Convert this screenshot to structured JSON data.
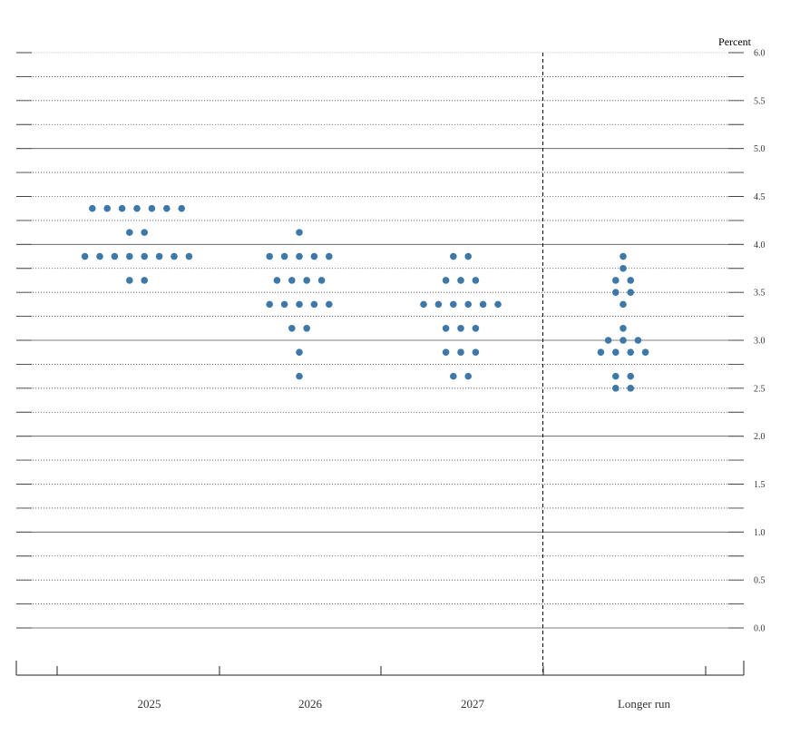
{
  "chart_data": {
    "type": "scatter",
    "ylabel": "Percent",
    "ylim": [
      0,
      6
    ],
    "y_ticks": [
      "0.0",
      "0.5",
      "1.0",
      "1.5",
      "2.0",
      "2.5",
      "3.0",
      "3.5",
      "4.0",
      "4.5",
      "5.0",
      "5.5",
      "6.0"
    ],
    "categories": [
      "2025",
      "2026",
      "2027",
      "Longer run"
    ],
    "dot_color": "#3d78a8",
    "groups": [
      {
        "category": "2025",
        "rows": [
          {
            "y": 4.375,
            "count": 7
          },
          {
            "y": 4.125,
            "count": 2
          },
          {
            "y": 3.875,
            "count": 8
          },
          {
            "y": 3.625,
            "count": 2
          }
        ]
      },
      {
        "category": "2026",
        "rows": [
          {
            "y": 4.125,
            "count": 1
          },
          {
            "y": 3.875,
            "count": 5
          },
          {
            "y": 3.625,
            "count": 4
          },
          {
            "y": 3.375,
            "count": 5
          },
          {
            "y": 3.125,
            "count": 2
          },
          {
            "y": 2.875,
            "count": 1
          },
          {
            "y": 2.625,
            "count": 1
          }
        ]
      },
      {
        "category": "2027",
        "rows": [
          {
            "y": 3.875,
            "count": 2
          },
          {
            "y": 3.625,
            "count": 3
          },
          {
            "y": 3.375,
            "count": 6
          },
          {
            "y": 3.125,
            "count": 3
          },
          {
            "y": 2.875,
            "count": 3
          },
          {
            "y": 2.625,
            "count": 2
          }
        ]
      },
      {
        "category": "Longer run",
        "rows": [
          {
            "y": 3.875,
            "count": 1
          },
          {
            "y": 3.75,
            "count": 1
          },
          {
            "y": 3.625,
            "count": 2
          },
          {
            "y": 3.5,
            "count": 2
          },
          {
            "y": 3.375,
            "count": 1
          },
          {
            "y": 3.125,
            "count": 1
          },
          {
            "y": 3.0,
            "count": 3
          },
          {
            "y": 2.875,
            "count": 4
          },
          {
            "y": 2.625,
            "count": 2
          },
          {
            "y": 2.5,
            "count": 2
          }
        ]
      }
    ]
  }
}
